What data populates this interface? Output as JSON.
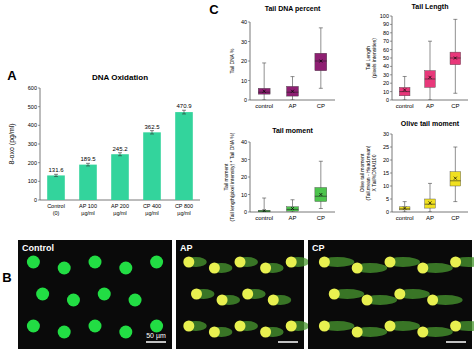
{
  "chart_data": [
    {
      "type": "bar",
      "title": "DNA Oxidation",
      "y_label": "8-oxo (pg/ml)",
      "categories": [
        "Control (0)",
        "AP 100 µg/ml",
        "AP 200 µg/ml",
        "CP 400 µg/ml",
        "CP 800 µg/ml"
      ],
      "values": [
        131.6,
        189.5,
        245.2,
        362.5,
        470.9
      ],
      "error": [
        6,
        7,
        8,
        9,
        10
      ],
      "color": "#33d49c",
      "ylim": [
        0,
        600
      ],
      "yticks": [
        0,
        100,
        200,
        300,
        400,
        500,
        600
      ],
      "data_labels": true
    },
    {
      "type": "box",
      "title": "Tail DNA percent",
      "y_label": "Tail DNA %",
      "categories": [
        "control",
        "AP",
        "CP"
      ],
      "min": [
        0,
        0,
        6
      ],
      "q1": [
        3,
        2,
        15
      ],
      "median": [
        4,
        4,
        20
      ],
      "q3": [
        6,
        7,
        24
      ],
      "max": [
        19,
        12,
        37
      ],
      "mean": [
        4.5,
        4.5,
        20
      ],
      "color": "#8e1f72",
      "ylim": [
        0,
        40
      ],
      "yticks": [
        0,
        10,
        20,
        30,
        40
      ]
    },
    {
      "type": "box",
      "title": "Tail Length",
      "y_label": "Tail Length\n(pixels intensities)",
      "categories": [
        "control",
        "AP",
        "CP"
      ],
      "min": [
        0,
        0,
        8
      ],
      "q1": [
        5,
        15,
        42
      ],
      "median": [
        10,
        25,
        50
      ],
      "q3": [
        15,
        35,
        57
      ],
      "max": [
        28,
        70,
        96
      ],
      "mean": [
        12,
        27,
        50
      ],
      "color": "#e8387a",
      "ylim": [
        0,
        100
      ],
      "yticks": [
        0,
        10,
        20,
        30,
        40,
        50,
        60,
        70,
        80,
        90,
        100
      ]
    },
    {
      "type": "box",
      "title": "Tail moment",
      "y_label": "Tail moment\n(Tail length(pixel intensity) * Tail DNA %)",
      "categories": [
        "control",
        "AP",
        "CP"
      ],
      "min": [
        0,
        0,
        2
      ],
      "q1": [
        0,
        0.5,
        6
      ],
      "median": [
        0.5,
        1.5,
        9
      ],
      "q3": [
        1,
        3,
        14
      ],
      "max": [
        8,
        7,
        29
      ],
      "mean": [
        0.8,
        2,
        10
      ],
      "color": "#4cc44c",
      "ylim": [
        0,
        40
      ],
      "yticks": [
        0,
        10,
        20,
        30,
        40
      ]
    },
    {
      "type": "box",
      "title": "Olive tail moment",
      "y_label": "Olive tail moment\n(Tail.mean - Head.mean)\nX Tail%DNA/100",
      "categories": [
        "control",
        "AP",
        "CP"
      ],
      "min": [
        0,
        0,
        4
      ],
      "q1": [
        0.8,
        1.5,
        10
      ],
      "median": [
        1.2,
        3,
        12
      ],
      "q3": [
        2,
        5,
        15.5
      ],
      "max": [
        4,
        11,
        25
      ],
      "mean": [
        1.5,
        3.5,
        13
      ],
      "color": "#f0e020",
      "ylim": [
        0,
        30
      ],
      "yticks": [
        0,
        5,
        10,
        15,
        20,
        25,
        30
      ]
    }
  ],
  "panel_labels": [
    "A",
    "B",
    "C"
  ],
  "micrographs": {
    "labels": [
      "Control",
      "AP",
      "CP"
    ],
    "scale_bar": "50 µm"
  }
}
